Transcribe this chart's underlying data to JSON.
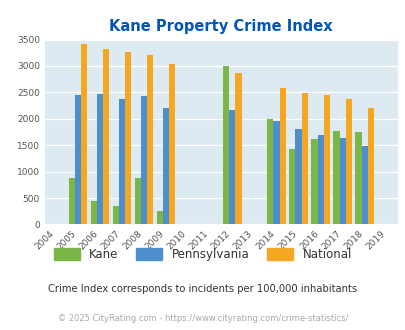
{
  "title": "Kane Property Crime Index",
  "years": [
    2004,
    2005,
    2006,
    2007,
    2008,
    2009,
    2010,
    2011,
    2012,
    2013,
    2014,
    2015,
    2016,
    2017,
    2018,
    2019
  ],
  "kane": [
    null,
    880,
    450,
    350,
    870,
    260,
    null,
    null,
    3000,
    null,
    2000,
    1420,
    1620,
    1770,
    1750,
    null
  ],
  "pennsylvania": [
    null,
    2460,
    2470,
    2370,
    2430,
    2210,
    null,
    null,
    2160,
    null,
    1950,
    1800,
    1700,
    1630,
    1480,
    null
  ],
  "national": [
    null,
    3420,
    3330,
    3260,
    3200,
    3040,
    null,
    null,
    2860,
    null,
    2590,
    2490,
    2460,
    2370,
    2210,
    null
  ],
  "kane_color": "#7ab648",
  "penn_color": "#4d8fcc",
  "national_color": "#f5a623",
  "plot_bg": "#ddeaf2",
  "title_color": "#0055bb",
  "footer_color": "#aaaaaa",
  "subtitle_color": "#333333",
  "legend_text_color": "#333333",
  "ylim": [
    0,
    3500
  ],
  "yticks": [
    0,
    500,
    1000,
    1500,
    2000,
    2500,
    3000,
    3500
  ],
  "bar_width": 0.28,
  "subtitle": "Crime Index corresponds to incidents per 100,000 inhabitants",
  "footer": "© 2025 CityRating.com - https://www.cityrating.com/crime-statistics/"
}
